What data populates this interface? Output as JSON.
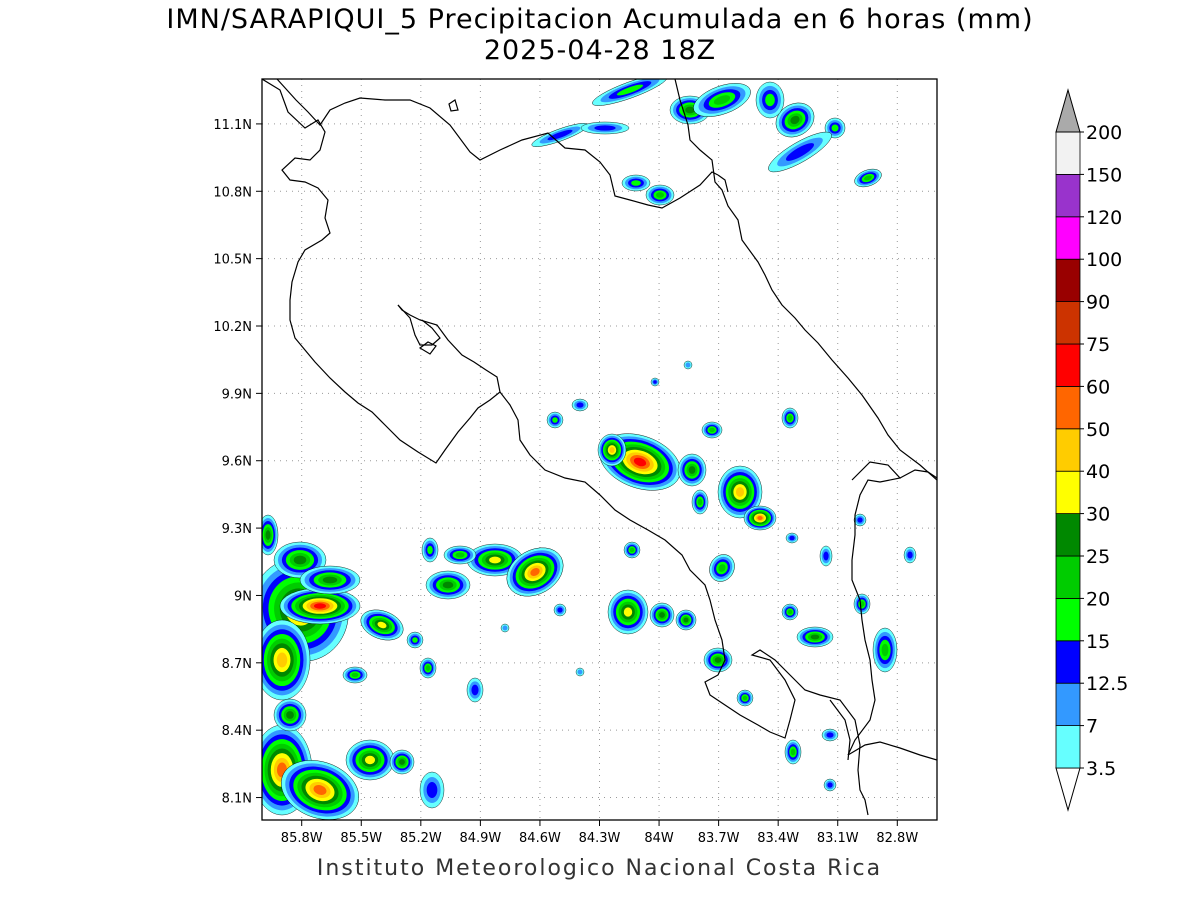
{
  "title": {
    "line1": "IMN/SARAPIQUI_5 Precipitacion Acumulada en 6 horas (mm)",
    "line2": "2025-04-28 18Z"
  },
  "footer": "Instituto Meteorologico Nacional Costa Rica",
  "map": {
    "lon_range": [
      -86.0,
      -82.6
    ],
    "lat_range": [
      8.0,
      11.3
    ],
    "lat_ticks": [
      "11.1N",
      "10.8N",
      "10.5N",
      "10.2N",
      "9.9N",
      "9.6N",
      "9.3N",
      "9N",
      "8.7N",
      "8.4N",
      "8.1N"
    ],
    "lon_ticks": [
      "85.8W",
      "85.5W",
      "85.2W",
      "84.9W",
      "84.6W",
      "84.3W",
      "84W",
      "83.7W",
      "83.4W",
      "83.1W",
      "82.8W"
    ],
    "grid": true,
    "grid_style": "dotted"
  },
  "colorbar": {
    "labels": [
      "3.5",
      "7",
      "12.5",
      "15",
      "20",
      "25",
      "30",
      "40",
      "50",
      "60",
      "75",
      "90",
      "100",
      "120",
      "150",
      "200"
    ],
    "colors": [
      "#ffffff",
      "#66ffff",
      "#3399ff",
      "#0000ff",
      "#00ff00",
      "#00cc00",
      "#008800",
      "#ffff00",
      "#ffcc00",
      "#ff6600",
      "#ff0000",
      "#cc3300",
      "#990000",
      "#ff00ff",
      "#9933cc",
      "#f2f2f2",
      "#aaaaaa"
    ],
    "top_arrow_color": "#aaaaaa",
    "bottom_arrow_color": "#ffffff"
  }
}
